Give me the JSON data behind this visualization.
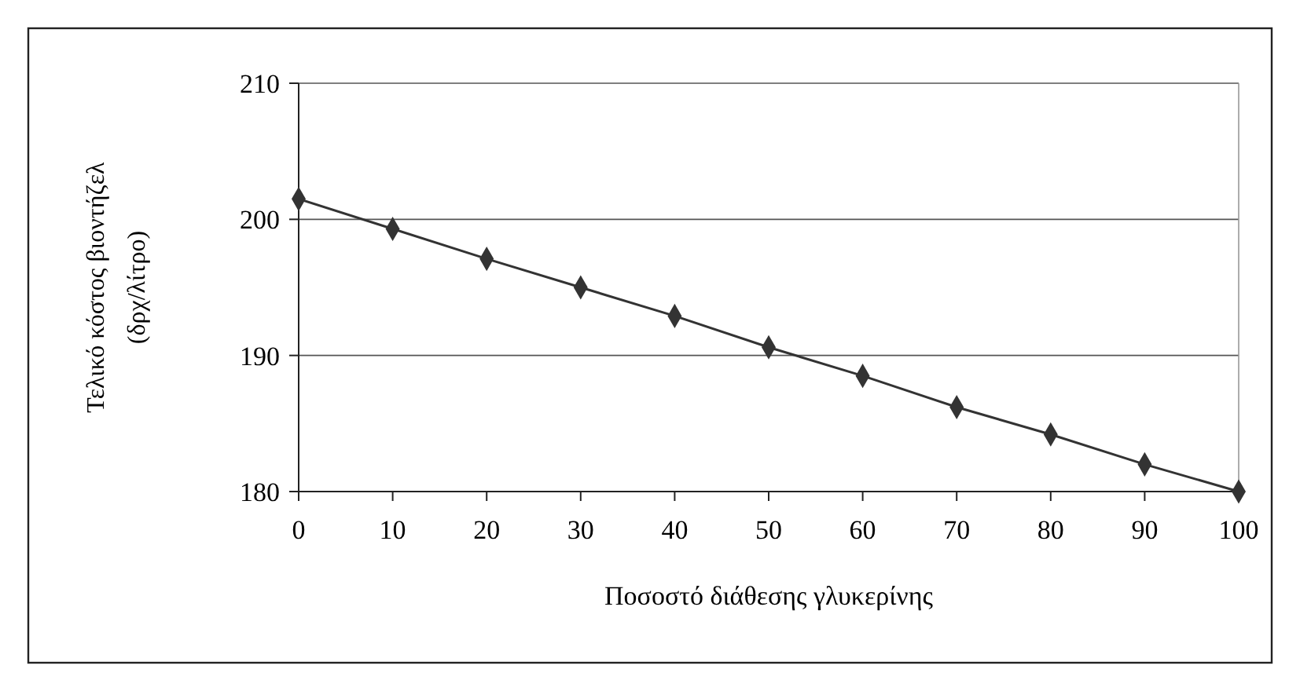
{
  "chart_data": {
    "type": "line",
    "xlabel": "Ποσοστό διάθεσης γλυκερίνης",
    "ylabel": "Τελικό κόστος βιοντήζελ (δρχ/λίτρο)",
    "x": [
      0,
      10,
      20,
      30,
      40,
      50,
      60,
      70,
      80,
      90,
      100
    ],
    "series": [
      {
        "color": "#333333",
        "values": [
          201.5,
          199.3,
          197.1,
          195,
          192.9,
          190.6,
          188.5,
          186.2,
          184.2,
          182,
          180
        ]
      }
    ],
    "xlim": [
      0,
      100
    ],
    "xticks": [
      0,
      10,
      20,
      30,
      40,
      50,
      60,
      70,
      80,
      90,
      100
    ],
    "ylim": [
      180,
      210
    ],
    "yticks": [
      180,
      190,
      200,
      210
    ],
    "grid": "y",
    "marker": "diamond",
    "line_style": "solid"
  }
}
